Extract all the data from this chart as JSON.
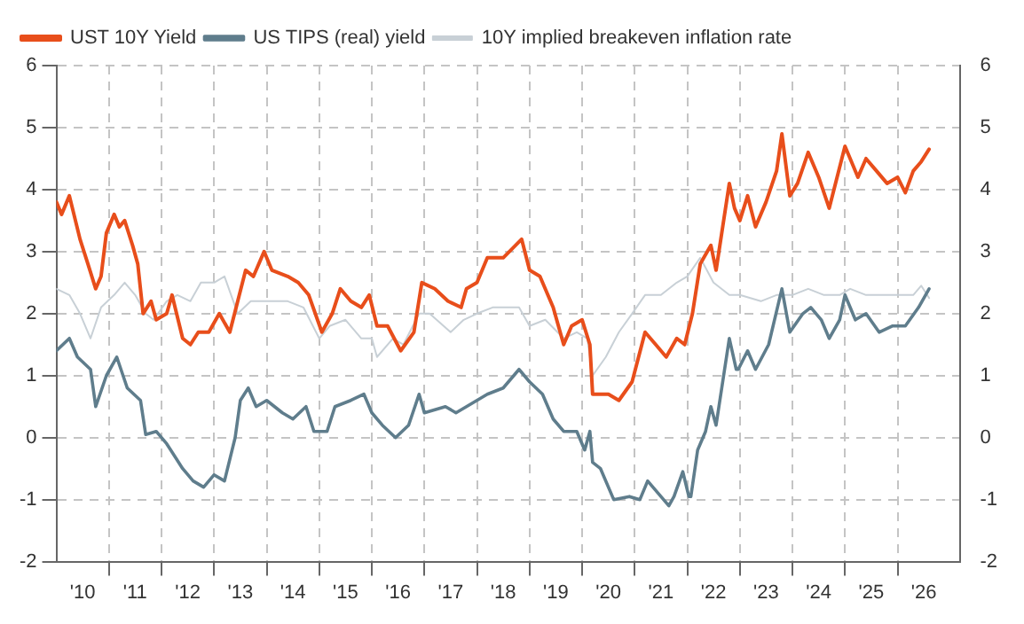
{
  "chart_data": {
    "type": "line",
    "legend": "top left",
    "grid": true,
    "marker": "none",
    "line_style": "solid",
    "xlim": [
      "2010-01-01",
      "2027-03-14"
    ],
    "xticks": [
      {
        "value": "2010-07-02",
        "label": "'10"
      },
      {
        "value": "2011-01-01",
        "label": null
      },
      {
        "value": "2011-07-02",
        "label": "'11"
      },
      {
        "value": "2012-01-01",
        "label": null
      },
      {
        "value": "2012-07-02",
        "label": "'12"
      },
      {
        "value": "2013-01-01",
        "label": null
      },
      {
        "value": "2013-07-02",
        "label": "'13"
      },
      {
        "value": "2014-01-01",
        "label": null
      },
      {
        "value": "2014-07-02",
        "label": "'14"
      },
      {
        "value": "2015-01-01",
        "label": null
      },
      {
        "value": "2015-07-02",
        "label": "'15"
      },
      {
        "value": "2016-01-01",
        "label": null
      },
      {
        "value": "2016-07-02",
        "label": "'16"
      },
      {
        "value": "2017-01-01",
        "label": null
      },
      {
        "value": "2017-07-02",
        "label": "'17"
      },
      {
        "value": "2018-01-01",
        "label": null
      },
      {
        "value": "2018-07-02",
        "label": "'18"
      },
      {
        "value": "2019-01-01",
        "label": null
      },
      {
        "value": "2019-07-02",
        "label": "'19"
      },
      {
        "value": "2020-01-01",
        "label": null
      },
      {
        "value": "2020-07-02",
        "label": "'20"
      },
      {
        "value": "2021-01-01",
        "label": null
      },
      {
        "value": "2021-07-02",
        "label": "'21"
      },
      {
        "value": "2022-01-01",
        "label": null
      },
      {
        "value": "2022-07-02",
        "label": "'22"
      },
      {
        "value": "2023-01-01",
        "label": null
      },
      {
        "value": "2023-07-02",
        "label": "'23"
      },
      {
        "value": "2024-01-01",
        "label": null
      },
      {
        "value": "2024-07-02",
        "label": "'24"
      },
      {
        "value": "2025-01-01",
        "label": null
      },
      {
        "value": "2025-07-02",
        "label": "'25"
      },
      {
        "value": "2026-01-01",
        "label": null
      },
      {
        "value": "2026-07-02",
        "label": "'26"
      }
    ],
    "ylim": [
      -2,
      6
    ],
    "yticks": [
      -2,
      -1,
      0,
      1,
      2,
      3,
      4,
      5,
      6
    ],
    "y2lim": [
      -2,
      6
    ],
    "y2ticks": [
      -2,
      -1,
      0,
      1,
      2,
      3,
      4,
      5,
      6
    ],
    "series": [
      {
        "name": "UST 10Y Yield",
        "color": "#e84e1b",
        "x": [
          "2010-01-01",
          "2010-02-06",
          "2010-04-01",
          "2010-06-14",
          "2010-08-08",
          "2010-10-01",
          "2010-11-07",
          "2010-12-14",
          "2011-02-06",
          "2011-03-14",
          "2011-04-20",
          "2011-06-14",
          "2011-07-20",
          "2011-08-26",
          "2011-10-20",
          "2011-11-25",
          "2012-02-06",
          "2012-03-14",
          "2012-05-27",
          "2012-07-20",
          "2012-09-13",
          "2012-11-25",
          "2013-02-06",
          "2013-04-20",
          "2013-06-14",
          "2013-08-08",
          "2013-10-01",
          "2013-12-14",
          "2014-02-06",
          "2014-05-27",
          "2014-08-08",
          "2014-10-20",
          "2015-01-19",
          "2015-04-01",
          "2015-05-27",
          "2015-08-08",
          "2015-10-20",
          "2015-12-14",
          "2016-02-06",
          "2016-04-20",
          "2016-07-20",
          "2016-10-20",
          "2016-12-14",
          "2017-03-14",
          "2017-06-14",
          "2017-09-13",
          "2017-10-20",
          "2018-01-01",
          "2018-03-14",
          "2018-07-02",
          "2018-11-07",
          "2019-01-01",
          "2019-03-14",
          "2019-06-14",
          "2019-08-26",
          "2019-10-20",
          "2020-01-01",
          "2020-02-24",
          "2020-03-14",
          "2020-07-02",
          "2020-09-13",
          "2020-12-14",
          "2021-03-14",
          "2021-05-27",
          "2021-08-08",
          "2021-10-20",
          "2021-12-14",
          "2022-02-06",
          "2022-04-01",
          "2022-06-14",
          "2022-07-20",
          "2022-10-20",
          "2022-11-25",
          "2023-01-01",
          "2023-02-24",
          "2023-04-20",
          "2023-07-02",
          "2023-09-13",
          "2023-10-20",
          "2023-12-14",
          "2024-02-06",
          "2024-04-20",
          "2024-07-02",
          "2024-09-13",
          "2024-11-07",
          "2025-01-01",
          "2025-04-01",
          "2025-05-27",
          "2025-08-08",
          "2025-10-20",
          "2026-01-01",
          "2026-02-24",
          "2026-04-20",
          "2026-06-14",
          "2026-08-08"
        ],
        "values": [
          3.8,
          3.6,
          3.9,
          3.2,
          2.8,
          2.4,
          2.6,
          3.3,
          3.6,
          3.4,
          3.5,
          3.1,
          2.8,
          2.0,
          2.2,
          1.9,
          2.0,
          2.3,
          1.6,
          1.5,
          1.7,
          1.7,
          2.0,
          1.7,
          2.2,
          2.7,
          2.6,
          3.0,
          2.7,
          2.6,
          2.5,
          2.3,
          1.7,
          2.0,
          2.4,
          2.2,
          2.1,
          2.3,
          1.8,
          1.8,
          1.4,
          1.7,
          2.5,
          2.4,
          2.2,
          2.1,
          2.4,
          2.5,
          2.9,
          2.9,
          3.2,
          2.7,
          2.6,
          2.1,
          1.5,
          1.8,
          1.9,
          1.5,
          0.7,
          0.7,
          0.6,
          0.9,
          1.7,
          1.5,
          1.3,
          1.6,
          1.5,
          2.0,
          2.8,
          3.1,
          2.7,
          4.1,
          3.7,
          3.5,
          3.9,
          3.4,
          3.8,
          4.3,
          4.9,
          3.9,
          4.1,
          4.6,
          4.2,
          3.7,
          4.2,
          4.7,
          4.2,
          4.5,
          4.3,
          4.1,
          4.2,
          3.95,
          4.3,
          4.45,
          4.65
        ]
      },
      {
        "name": "US TIPS (real) yield",
        "color": "#5f7d8c",
        "x": [
          "2010-01-01",
          "2010-04-01",
          "2010-05-27",
          "2010-08-26",
          "2010-10-01",
          "2010-12-14",
          "2011-02-24",
          "2011-05-08",
          "2011-08-08",
          "2011-09-13",
          "2011-11-25",
          "2012-02-06",
          "2012-05-27",
          "2012-08-08",
          "2012-10-20",
          "2013-01-01",
          "2013-03-14",
          "2013-05-27",
          "2013-07-02",
          "2013-08-26",
          "2013-10-20",
          "2014-01-01",
          "2014-04-20",
          "2014-07-02",
          "2014-10-01",
          "2014-11-25",
          "2015-02-24",
          "2015-04-20",
          "2015-08-08",
          "2015-11-07",
          "2016-01-01",
          "2016-03-14",
          "2016-06-14",
          "2016-09-13",
          "2016-11-25",
          "2017-01-01",
          "2017-05-27",
          "2017-08-08",
          "2017-10-20",
          "2018-03-14",
          "2018-07-02",
          "2018-10-20",
          "2019-01-01",
          "2019-04-01",
          "2019-06-14",
          "2019-08-26",
          "2019-11-25",
          "2020-01-19",
          "2020-02-24",
          "2020-03-14",
          "2020-05-08",
          "2020-08-08",
          "2020-11-25",
          "2021-02-06",
          "2021-04-01",
          "2021-07-02",
          "2021-08-26",
          "2021-10-01",
          "2021-12-01",
          "2022-01-12",
          "2022-01-26",
          "2022-03-14",
          "2022-05-08",
          "2022-06-14",
          "2022-07-20",
          "2022-10-20",
          "2022-12-07",
          "2022-12-21",
          "2023-02-24",
          "2023-04-20",
          "2023-07-20",
          "2023-10-20",
          "2023-12-14",
          "2024-03-14",
          "2024-05-08",
          "2024-07-20",
          "2024-09-13",
          "2024-11-25",
          "2025-01-01",
          "2025-03-14",
          "2025-05-27",
          "2025-08-26",
          "2025-11-25",
          "2026-02-24",
          "2026-05-27",
          "2026-08-08"
        ],
        "values": [
          1.4,
          1.6,
          1.3,
          1.1,
          0.5,
          1.0,
          1.3,
          0.8,
          0.6,
          0.05,
          0.1,
          -0.1,
          -0.5,
          -0.7,
          -0.8,
          -0.6,
          -0.7,
          0.0,
          0.6,
          0.8,
          0.5,
          0.6,
          0.4,
          0.3,
          0.5,
          0.1,
          0.1,
          0.5,
          0.6,
          0.7,
          0.4,
          0.2,
          0.0,
          0.2,
          0.7,
          0.4,
          0.5,
          0.4,
          0.5,
          0.7,
          0.8,
          1.1,
          0.9,
          0.7,
          0.3,
          0.1,
          0.1,
          -0.2,
          0.1,
          -0.4,
          -0.5,
          -1.0,
          -0.95,
          -1.0,
          -0.7,
          -0.95,
          -1.1,
          -0.95,
          -0.55,
          -0.95,
          -0.95,
          -0.2,
          0.1,
          0.5,
          0.2,
          1.6,
          1.1,
          1.1,
          1.4,
          1.1,
          1.5,
          2.4,
          1.7,
          2.0,
          2.1,
          1.9,
          1.6,
          1.9,
          2.3,
          1.9,
          2.0,
          1.7,
          1.8,
          1.8,
          2.1,
          2.4
        ]
      },
      {
        "name": "10Y implied breakeven inflation rate",
        "color": "#c8d0d6",
        "x": [
          "2010-01-01",
          "2010-04-01",
          "2010-06-14",
          "2010-08-26",
          "2010-11-07",
          "2011-02-06",
          "2011-04-20",
          "2011-07-02",
          "2011-09-13",
          "2011-11-07",
          "2012-02-06",
          "2012-04-20",
          "2012-07-20",
          "2012-10-01",
          "2013-01-01",
          "2013-03-14",
          "2013-06-14",
          "2013-09-13",
          "2014-01-01",
          "2014-05-27",
          "2014-09-13",
          "2015-01-01",
          "2015-03-14",
          "2015-07-02",
          "2015-10-20",
          "2016-01-01",
          "2016-02-06",
          "2016-05-27",
          "2016-08-08",
          "2016-11-25",
          "2017-02-06",
          "2017-07-02",
          "2017-10-01",
          "2018-01-01",
          "2018-04-20",
          "2018-10-20",
          "2019-01-01",
          "2019-04-20",
          "2019-08-26",
          "2019-11-25",
          "2020-02-06",
          "2020-03-14",
          "2020-06-14",
          "2020-09-13",
          "2020-12-14",
          "2021-03-14",
          "2021-07-02",
          "2021-10-20",
          "2022-01-01",
          "2022-04-01",
          "2022-07-02",
          "2022-10-20",
          "2023-01-01",
          "2023-05-27",
          "2023-09-13",
          "2024-01-01",
          "2024-04-20",
          "2024-08-08",
          "2024-11-25",
          "2025-02-06",
          "2025-05-27",
          "2025-09-13",
          "2026-01-01",
          "2026-04-20",
          "2026-06-14",
          "2026-08-08"
        ],
        "values": [
          2.4,
          2.3,
          2.0,
          1.6,
          2.1,
          2.3,
          2.5,
          2.3,
          2.0,
          1.9,
          2.2,
          2.3,
          2.2,
          2.5,
          2.5,
          2.6,
          2.0,
          2.2,
          2.2,
          2.2,
          2.1,
          1.6,
          1.8,
          1.9,
          1.6,
          1.6,
          1.3,
          1.6,
          1.5,
          2.0,
          2.0,
          1.7,
          1.9,
          2.0,
          2.1,
          2.1,
          1.8,
          1.9,
          1.6,
          1.7,
          1.6,
          1.0,
          1.3,
          1.7,
          2.0,
          2.3,
          2.3,
          2.5,
          2.6,
          2.9,
          2.5,
          2.3,
          2.3,
          2.2,
          2.3,
          2.3,
          2.4,
          2.3,
          2.3,
          2.4,
          2.3,
          2.3,
          2.3,
          2.3,
          2.45,
          2.25
        ]
      }
    ]
  }
}
